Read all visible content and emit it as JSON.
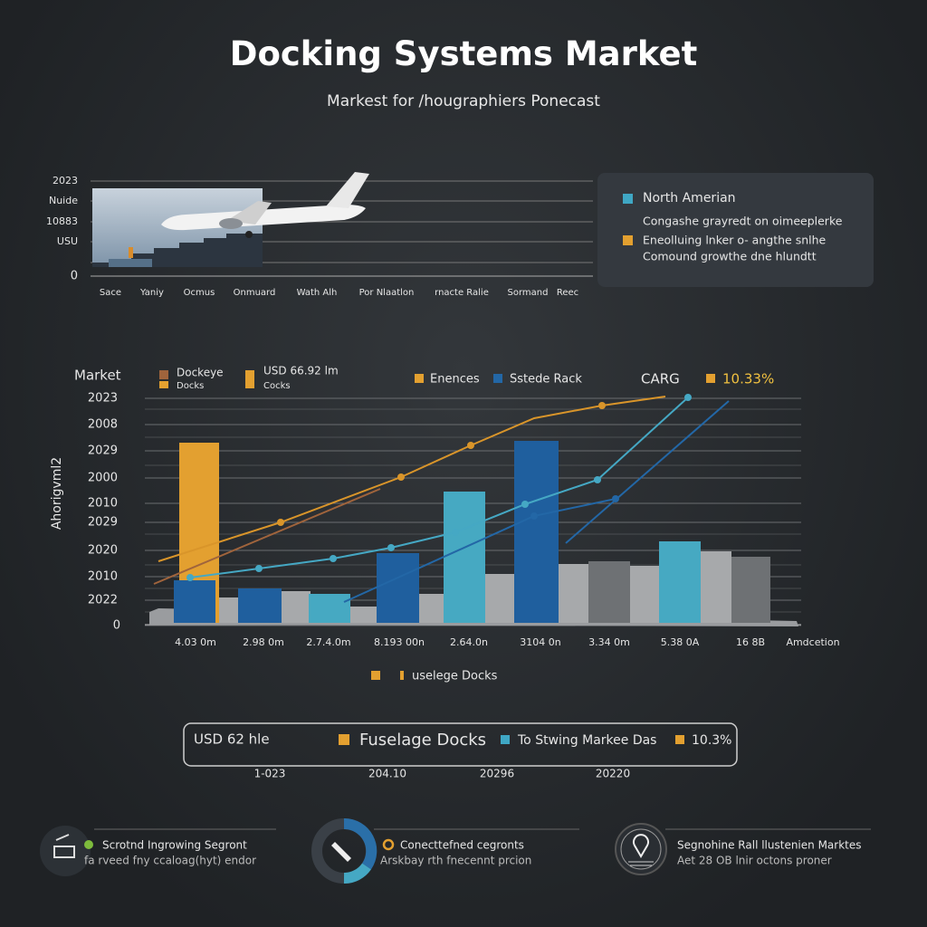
{
  "header": {
    "title": "Docking Systems Market",
    "subtitle": "Markest for /hougraphiers Ponecast"
  },
  "top_chart": {
    "y_labels": [
      "2023",
      "Nuide",
      "10883",
      "USU",
      "0"
    ],
    "x_labels": [
      "Sace",
      "Yaniy",
      "Ocmus",
      "Onmuard",
      "Wath  Alh",
      "Por Nlaatlon",
      "rnacte Ralie",
      "Sormand",
      "Reec"
    ]
  },
  "top_legend": {
    "title": "North Amerian",
    "lines": [
      "Congashe grayredt on oimeeplerke",
      "Eneolluing lnker o- angthe snlhe",
      "Comound growthe dne hlundtt"
    ]
  },
  "main_chart": {
    "title": "Market",
    "y_axis_title": "Ahorigvml2",
    "legend": [
      {
        "label": "Dockeye",
        "sub": "Docks"
      },
      {
        "label": "USD 66.92 lm",
        "sub": "Cocks"
      },
      {
        "label": "Enences"
      },
      {
        "label": "Sstede Rack"
      }
    ],
    "cagr_label": "CARG",
    "cagr_value": "10.33%",
    "y_labels": [
      "2023",
      "2008",
      "2029",
      "2000",
      "2010",
      "2029",
      "2020",
      "2010",
      "2022",
      "0"
    ],
    "x_labels": [
      "4.03 0m",
      "2.98 0m",
      "2.7.4.0m",
      "8.193 00n",
      "2.64.0n",
      "3104 0n",
      "3.34 0m",
      "5.38 0A",
      "16 8B",
      "Amdcetion"
    ],
    "bottom_legend": "uselege Docks"
  },
  "summary": {
    "left": "USD 62 hle",
    "items": [
      "Fuselage Docks",
      "To Stwing Markee Das",
      "10.3%"
    ],
    "years": [
      "1-023",
      "204.10",
      "20296",
      "20220"
    ]
  },
  "footer": [
    {
      "title": "Scrotnd Ingrowing Segront",
      "text": "fa rveed fny ccaloag(hyt) endor"
    },
    {
      "title": "Conecttefned cegronts",
      "text": "Arskbay rth fnecennt prcion"
    },
    {
      "title": "Segnohine Rall llustenien Marktes",
      "text": "Aet 28 OB lnir octons proner"
    }
  ]
}
